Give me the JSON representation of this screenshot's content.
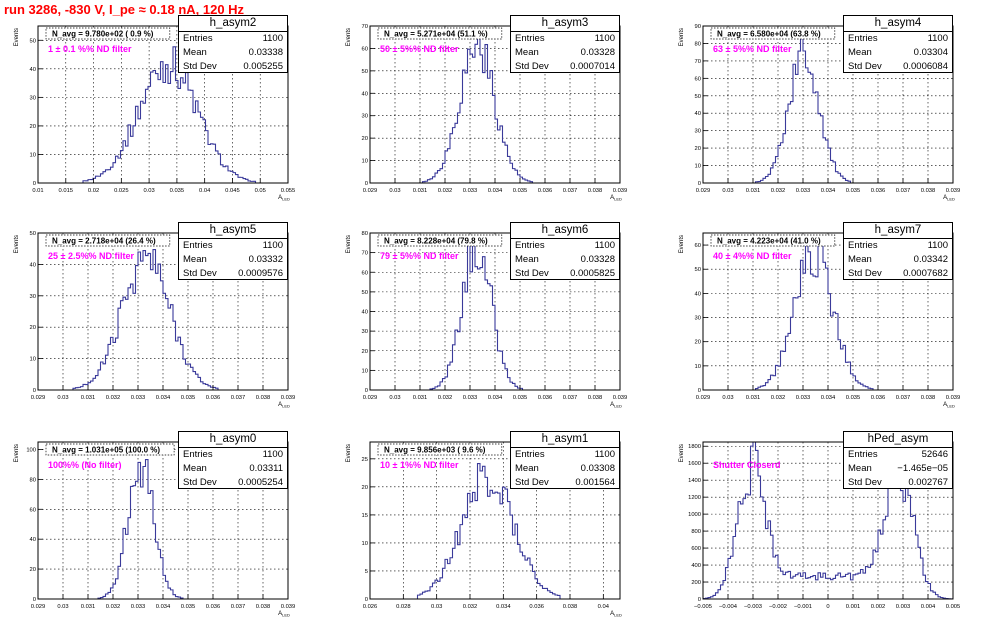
{
  "page_title": "run 3286,  -830 V, I_pe ≈ 0.18 nA, 120 Hz",
  "stat_labels": {
    "entries": "Entries",
    "mean": "Mean",
    "std": "Std Dev"
  },
  "colors": {
    "histogram": "#3a3a9a",
    "title": "#ff0000",
    "annotation": "#ff00ff",
    "grid": "#000000"
  },
  "chart_data": [
    {
      "type": "histogram",
      "name": "h_asym2",
      "stats": {
        "entries": "1100",
        "mean": "0.03338",
        "std": "0.005255"
      },
      "navg_label": "N_avg = 9.780e+02 ( 0.9 %)",
      "filter_label": "1 ± 0.1 %% ND filter",
      "xlabel": "A_LED",
      "ylabel": "Events",
      "xlim": [
        0.01,
        0.055
      ],
      "ylim": [
        0,
        55
      ],
      "xticks": [
        0.01,
        0.015,
        0.02,
        0.025,
        0.03,
        0.035,
        0.04,
        0.045,
        0.05,
        0.055
      ],
      "yticks": [
        0,
        10,
        20,
        30,
        40,
        50
      ],
      "shape": {
        "mean": 0.0334,
        "sigma": 0.00525,
        "peak": 42
      },
      "grid": true
    },
    {
      "type": "histogram",
      "name": "h_asym3",
      "stats": {
        "entries": "1100",
        "mean": "0.03328",
        "std": "0.0007014"
      },
      "navg_label": "N_avg = 5.271e+04 (51.1 %)",
      "filter_label": "50 ± 5%% ND filter",
      "xlabel": "A_LED",
      "ylabel": "Events",
      "xlim": [
        0.029,
        0.039
      ],
      "ylim": [
        0,
        70
      ],
      "xticks": [
        0.029,
        0.03,
        0.031,
        0.032,
        0.033,
        0.034,
        0.035,
        0.036,
        0.037,
        0.038,
        0.039
      ],
      "yticks": [
        0,
        10,
        20,
        30,
        40,
        50,
        60,
        70
      ],
      "shape": {
        "mean": 0.03328,
        "sigma": 0.0007,
        "peak": 62
      },
      "grid": true
    },
    {
      "type": "histogram",
      "name": "h_asym4",
      "stats": {
        "entries": "1100",
        "mean": "0.03304",
        "std": "0.0006084"
      },
      "navg_label": "N_avg = 6.580e+04 (63.8 %)",
      "filter_label": "63 ± 5%% ND filter",
      "xlabel": "A_LED",
      "ylabel": "Events",
      "xlim": [
        0.029,
        0.039
      ],
      "ylim": [
        0,
        90
      ],
      "xticks": [
        0.029,
        0.03,
        0.031,
        0.032,
        0.033,
        0.034,
        0.035,
        0.036,
        0.037,
        0.038,
        0.039
      ],
      "yticks": [
        0,
        10,
        20,
        30,
        40,
        50,
        60,
        70,
        80,
        90
      ],
      "shape": {
        "mean": 0.03304,
        "sigma": 0.00061,
        "peak": 74
      },
      "grid": true
    },
    {
      "type": "histogram",
      "name": "h_asym5",
      "stats": {
        "entries": "1100",
        "mean": "0.03332",
        "std": "0.0009576"
      },
      "navg_label": "N_avg = 2.718e+04 (26.4 %)",
      "filter_label": "25 ± 2.5%% ND filter",
      "xlabel": "A_LED",
      "ylabel": "Events",
      "xlim": [
        0.029,
        0.039
      ],
      "ylim": [
        0,
        50
      ],
      "xticks": [
        0.029,
        0.03,
        0.031,
        0.032,
        0.033,
        0.034,
        0.035,
        0.036,
        0.037,
        0.038,
        0.039
      ],
      "yticks": [
        0,
        10,
        20,
        30,
        40,
        50
      ],
      "shape": {
        "mean": 0.03332,
        "sigma": 0.00096,
        "peak": 42
      },
      "grid": true
    },
    {
      "type": "histogram",
      "name": "h_asym6",
      "stats": {
        "entries": "1100",
        "mean": "0.03328",
        "std": "0.0005825"
      },
      "navg_label": "N_avg = 8.228e+04 (79.8 %)",
      "filter_label": "79 ± 5%% ND filter",
      "xlabel": "A_LED",
      "ylabel": "Events",
      "xlim": [
        0.029,
        0.039
      ],
      "ylim": [
        0,
        80
      ],
      "xticks": [
        0.029,
        0.03,
        0.031,
        0.032,
        0.033,
        0.034,
        0.035,
        0.036,
        0.037,
        0.038,
        0.039
      ],
      "yticks": [
        0,
        10,
        20,
        30,
        40,
        50,
        60,
        70,
        80
      ],
      "shape": {
        "mean": 0.03328,
        "sigma": 0.00058,
        "peak": 74
      },
      "grid": true
    },
    {
      "type": "histogram",
      "name": "h_asym7",
      "stats": {
        "entries": "1100",
        "mean": "0.03342",
        "std": "0.0007682"
      },
      "navg_label": "N_avg = 4.223e+04 (41.0 %)",
      "filter_label": "40 ± 4%% ND filter",
      "xlabel": "A_LED",
      "ylabel": "Events",
      "xlim": [
        0.029,
        0.039
      ],
      "ylim": [
        0,
        65
      ],
      "xticks": [
        0.029,
        0.03,
        0.031,
        0.032,
        0.033,
        0.034,
        0.035,
        0.036,
        0.037,
        0.038,
        0.039
      ],
      "yticks": [
        0,
        10,
        20,
        30,
        40,
        50,
        60
      ],
      "shape": {
        "mean": 0.03342,
        "sigma": 0.00077,
        "peak": 57
      },
      "grid": true
    },
    {
      "type": "histogram",
      "name": "h_asym0",
      "stats": {
        "entries": "1100",
        "mean": "0.03311",
        "std": "0.0005254"
      },
      "navg_label": "N_avg = 1.031e+05 (100.0 %)",
      "filter_label": "100%% (No filter)",
      "xlabel": "A_LED",
      "ylabel": "Events",
      "xlim": [
        0.029,
        0.039
      ],
      "ylim": [
        0,
        105
      ],
      "xticks": [
        0.029,
        0.03,
        0.031,
        0.032,
        0.033,
        0.034,
        0.035,
        0.036,
        0.037,
        0.038,
        0.039
      ],
      "yticks": [
        0,
        20,
        40,
        60,
        80,
        100
      ],
      "shape": {
        "mean": 0.03311,
        "sigma": 0.00052,
        "peak": 90
      },
      "grid": true
    },
    {
      "type": "histogram",
      "name": "h_asym1",
      "stats": {
        "entries": "1100",
        "mean": "0.03308",
        "std": "0.001564"
      },
      "navg_label": "N_avg = 9.856e+03 ( 9.6 %)",
      "filter_label": "10 ± 1%% ND filter",
      "xlabel": "A_LED",
      "ylabel": "Events",
      "xlim": [
        0.026,
        0.041
      ],
      "ylim": [
        0,
        28
      ],
      "xticks": [
        0.026,
        0.028,
        0.03,
        0.032,
        0.034,
        0.036,
        0.038,
        0.04
      ],
      "yticks": [
        0,
        5,
        10,
        15,
        20,
        25
      ],
      "shape": {
        "mean": 0.03308,
        "sigma": 0.00156,
        "peak": 22
      },
      "grid": true
    },
    {
      "type": "histogram",
      "name": "hPed_asym",
      "stats": {
        "entries": "52646",
        "mean": "−1.465e−05",
        "std": "0.002767"
      },
      "navg_label": "",
      "filter_label": "Shutter Closerd",
      "xlabel": "",
      "ylabel": "Events",
      "xlim": [
        -0.005,
        0.005
      ],
      "ylim": [
        0,
        1850
      ],
      "xticks": [
        -0.005,
        -0.004,
        -0.003,
        -0.002,
        -0.001,
        0,
        0.001,
        0.002,
        0.003,
        0.004,
        0.005
      ],
      "yticks": [
        0,
        200,
        400,
        600,
        800,
        1000,
        1200,
        1400,
        1600,
        1800
      ],
      "shape": {
        "bimodal": true,
        "peak": 1700,
        "floor": 270,
        "left_center": -0.0031,
        "right_center": 0.0029
      },
      "grid": true
    }
  ]
}
